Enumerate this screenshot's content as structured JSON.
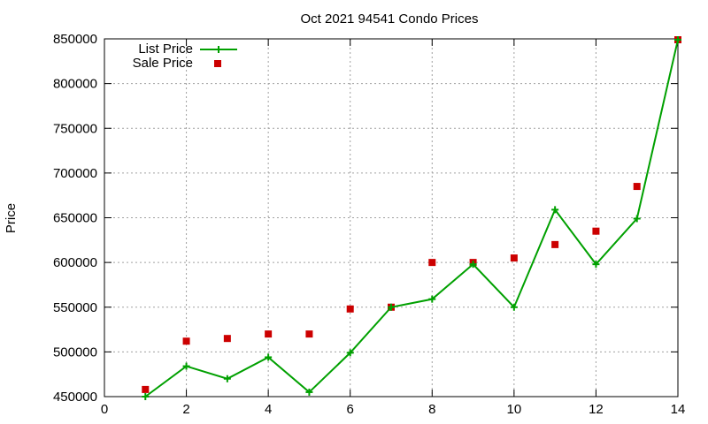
{
  "chart_data": {
    "type": "line",
    "title": "Oct 2021 94541 Condo Prices",
    "xlabel": "",
    "ylabel": "Price",
    "xlim": [
      0,
      14
    ],
    "ylim": [
      450000,
      850000
    ],
    "x_ticks": [
      "0",
      "2",
      "4",
      "6",
      "8",
      "10",
      "12",
      "14"
    ],
    "y_ticks": [
      "450000",
      "500000",
      "550000",
      "600000",
      "650000",
      "700000",
      "750000",
      "800000",
      "850000"
    ],
    "grid": true,
    "legend_position": "top-left",
    "series": [
      {
        "name": "List Price",
        "type": "line",
        "marker": "plus",
        "color": "#00a000",
        "points": [
          [
            1,
            450000
          ],
          [
            2,
            484000
          ],
          [
            3,
            470000
          ],
          [
            4,
            494000
          ],
          [
            5,
            455000
          ],
          [
            6,
            499000
          ],
          [
            7,
            550000
          ],
          [
            8,
            559000
          ],
          [
            9,
            598000
          ],
          [
            10,
            550000
          ],
          [
            11,
            659000
          ],
          [
            12,
            598000
          ],
          [
            13,
            649000
          ],
          [
            14,
            849000
          ]
        ]
      },
      {
        "name": "Sale Price",
        "type": "scatter",
        "marker": "square",
        "color": "#cc0000",
        "points": [
          [
            1,
            458000
          ],
          [
            2,
            512000
          ],
          [
            3,
            515000
          ],
          [
            4,
            520000
          ],
          [
            5,
            520000
          ],
          [
            6,
            548000
          ],
          [
            7,
            550000
          ],
          [
            8,
            600000
          ],
          [
            9,
            600000
          ],
          [
            10,
            605000
          ],
          [
            11,
            620000
          ],
          [
            12,
            635000
          ],
          [
            13,
            685000
          ],
          [
            14,
            849000
          ]
        ]
      }
    ]
  }
}
